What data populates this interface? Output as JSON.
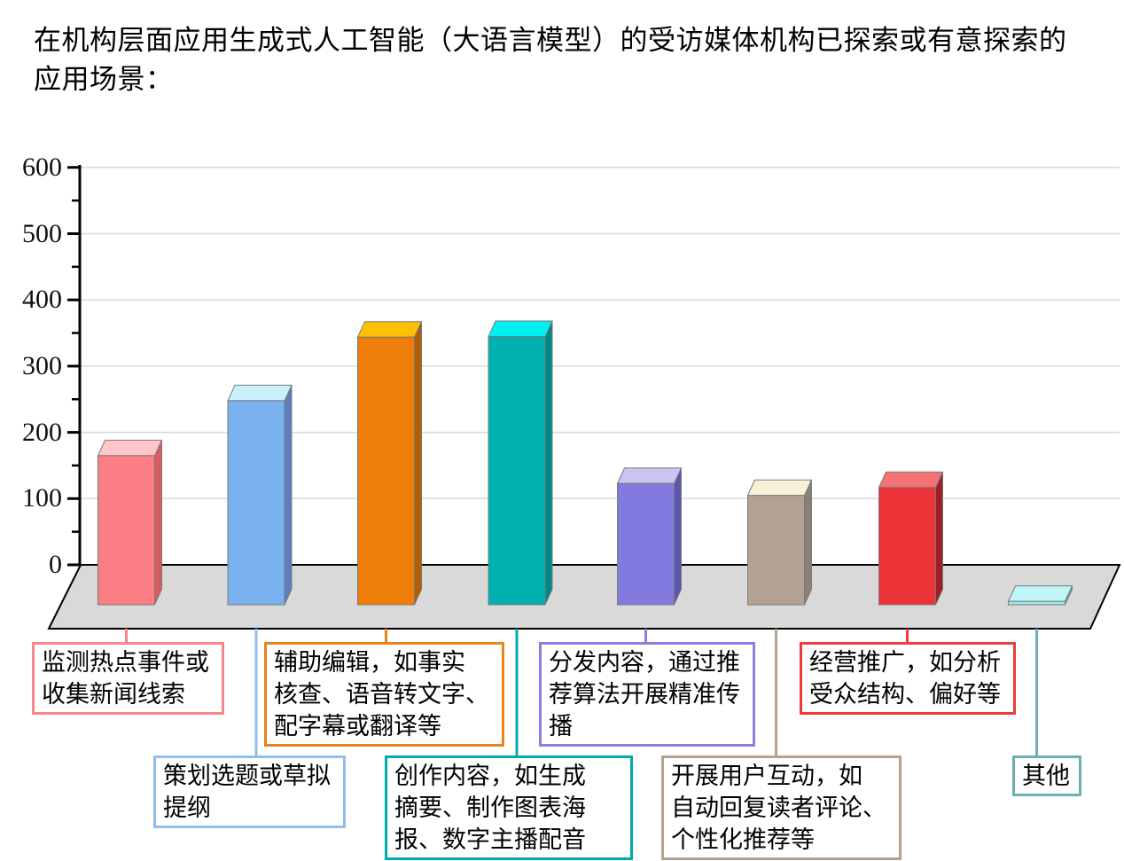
{
  "title": {
    "line1": "在机构层面应用生成式人工智能（大语言模型）的受访媒体机构已探索或有意探索的",
    "line2": "应用场景："
  },
  "chart_data": {
    "type": "bar",
    "style": "3d-column-oblique",
    "title": "在机构层面应用生成式人工智能（大语言模型）的受访媒体机构已探索或有意探索的应用场景：",
    "xlabel": "",
    "ylabel": "",
    "ylim": [
      0,
      600
    ],
    "ytick_interval": 100,
    "minor_tick_interval": 50,
    "grid": true,
    "legend": false,
    "gridline_color": "#d9d9d9",
    "floor_color": "#d9d9d9",
    "axis_color": "#000000",
    "ytick_labels_desc": [
      "600",
      "500",
      "400",
      "300",
      "200",
      "100",
      "0"
    ],
    "categories": [
      "监测热点事件或收集新闻线索",
      "策划选题或草拟提纲",
      "辅助编辑，如事实核查、语音转文字、配字幕或翻译等",
      "创作内容，如生成摘要、制作图表海报、数字主播配音",
      "分发内容，通过推荐算法开展精准传播",
      "开展用户互动，如自动回复读者评论、个性化推荐等",
      "经营推广，如分析受众结构、偏好等",
      "其他"
    ],
    "values": [
      225,
      308,
      404,
      405,
      183,
      165,
      177,
      5
    ],
    "bars": [
      {
        "category": "监测热点事件或收集新闻线索",
        "value": 225,
        "color_front": "#FB7E84",
        "color_top": "#FFC5C8",
        "color_side": "#D85C64",
        "accent": "#F5878D",
        "callout_lines": [
          "监测热点事件或",
          "收集新闻线索"
        ]
      },
      {
        "category": "策划选题或草拟提纲",
        "value": 308,
        "color_front": "#79B2EF",
        "color_top": "#C9F0FB",
        "color_side": "#5B7FBC",
        "accent": "#92BEE9",
        "callout_lines": [
          "策划选题或草拟",
          "提纲"
        ]
      },
      {
        "category": "辅助编辑，如事实核查、语音转文字、配字幕或翻译等",
        "value": 404,
        "color_front": "#EE7D09",
        "color_top": "#FFC003",
        "color_side": "#B25E03",
        "accent": "#E9831E",
        "callout_lines": [
          "辅助编辑，如事实",
          "核查、语音转文字、",
          "配字幕或翻译等"
        ]
      },
      {
        "category": "创作内容，如生成摘要、制作图表海报、数字主播配音",
        "value": 405,
        "color_front": "#00B1B1",
        "color_top": "#00EFEF",
        "color_side": "#018889",
        "accent": "#00AAAB",
        "callout_lines": [
          "创作内容，如生成",
          "摘要、制作图表海",
          "报、数字主播配音"
        ]
      },
      {
        "category": "分发内容，通过推荐算法开展精准传播",
        "value": 183,
        "color_front": "#837ADF",
        "color_top": "#CAC4F3",
        "color_side": "#5D54AB",
        "accent": "#8981DD",
        "callout_lines": [
          "分发内容，通过推",
          "荐算法开展精准传",
          "播"
        ]
      },
      {
        "category": "开展用户互动，如自动回复读者评论、个性化推荐等",
        "value": 165,
        "color_front": "#B2A294",
        "color_top": "#F7F2D7",
        "color_side": "#8D7E72",
        "accent": "#B4A190",
        "callout_lines": [
          "开展用户互动，如",
          "自动回复读者评论、",
          "个性化推荐等"
        ]
      },
      {
        "category": "经营推广，如分析受众结构、偏好等",
        "value": 177,
        "color_front": "#EB3338",
        "color_top": "#F57173",
        "color_side": "#9E1F24",
        "accent": "#F23A3A",
        "callout_lines": [
          "经营推广，如分析",
          "受众结构、偏好等"
        ]
      },
      {
        "category": "其他",
        "value": 5,
        "color_front": "#9FE9EC",
        "color_top": "#C0F5F7",
        "color_side": "#5FB4B6",
        "accent": "#6EAFB1",
        "callout_lines": [
          "其他"
        ]
      }
    ]
  }
}
